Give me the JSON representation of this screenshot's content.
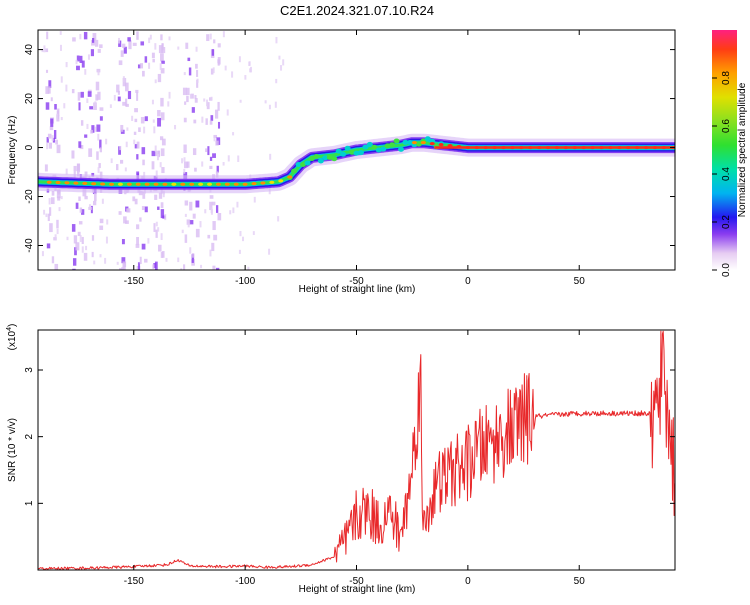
{
  "title": "C2E1.2024.321.07.10.R24",
  "chart_data": [
    {
      "type": "heatmap",
      "xlabel": "Height of straight line (km)",
      "ylabel": "Frequency (Hz)",
      "xlim": [
        -193,
        93
      ],
      "ylim": [
        -50,
        48
      ],
      "xticks": [
        -150,
        -100,
        -50,
        0,
        50
      ],
      "yticks": [
        -40,
        -20,
        0,
        20,
        40
      ],
      "ridge_line": {
        "x": [
          -193,
          -160,
          -130,
          -100,
          -85,
          -80,
          -75,
          -70,
          -60,
          -50,
          -40,
          -30,
          -25,
          -20,
          -10,
          0,
          10,
          30,
          60,
          93
        ],
        "y": [
          -14,
          -15,
          -15,
          -15,
          -14,
          -12,
          -7,
          -4,
          -3,
          -1,
          0,
          1,
          2,
          2,
          1,
          0,
          0,
          0,
          0,
          0
        ]
      },
      "interference_bands_x": [
        -187,
        -175,
        -168,
        -155,
        -148,
        -140,
        -125,
        -115
      ],
      "colorbar": {
        "label": "Normalized spectral amplitude",
        "ticks": [
          "0.0",
          "0.2",
          "0.4",
          "0.6",
          "0.8"
        ],
        "range": [
          0,
          1
        ]
      }
    },
    {
      "type": "line",
      "xlabel": "Height of straight line (km)",
      "ylabel": "SNR (10 * v/v)",
      "scale_label": "(x10",
      "scale_exp": "4",
      "xlim": [
        -193,
        93
      ],
      "ylim": [
        0,
        3.6
      ],
      "xticks": [
        -150,
        -100,
        -50,
        0,
        50
      ],
      "yticks": [
        1,
        2,
        3
      ],
      "color": "#e8282a",
      "series": [
        {
          "x": [
            -193,
            -170,
            -150,
            -135,
            -130,
            -125,
            -110,
            -100,
            -90,
            -80,
            -70,
            -60,
            -55,
            -50,
            -45,
            -40,
            -35,
            -30,
            -25,
            -22,
            -20,
            -18,
            -15,
            -10,
            -5,
            0,
            5,
            10,
            15,
            20,
            25,
            30,
            40,
            50,
            60,
            70,
            80,
            85,
            88,
            90,
            93
          ],
          "y": [
            0.02,
            0.03,
            0.05,
            0.08,
            0.15,
            0.06,
            0.05,
            0.06,
            0.04,
            0.05,
            0.08,
            0.2,
            0.4,
            0.8,
            0.9,
            0.7,
            0.85,
            0.5,
            1.5,
            2.75,
            0.6,
            0.9,
            1.2,
            1.4,
            1.5,
            1.6,
            1.8,
            1.9,
            2.0,
            2.1,
            2.25,
            2.3,
            2.33,
            2.35,
            2.35,
            2.35,
            2.35,
            2.3,
            3.2,
            2.2,
            1.5
          ]
        }
      ]
    }
  ]
}
